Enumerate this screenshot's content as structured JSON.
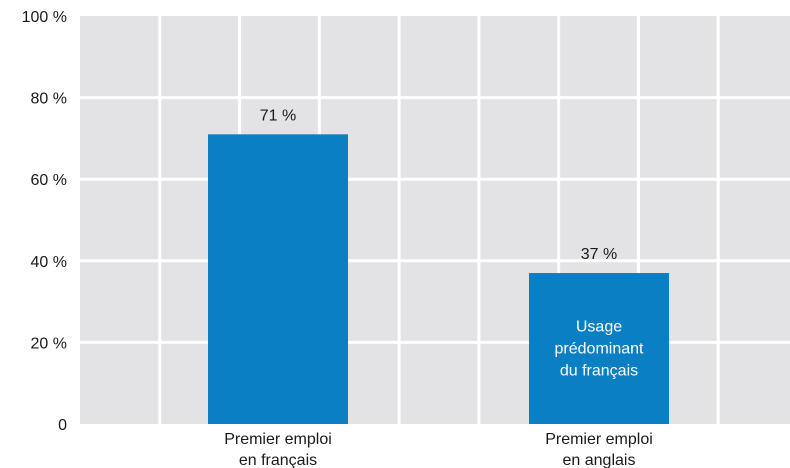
{
  "chart_data": {
    "type": "bar",
    "categories": [
      [
        "Premier emploi",
        "en français"
      ],
      [
        "Premier emploi",
        "en anglais"
      ]
    ],
    "values": [
      71,
      37
    ],
    "data_labels": [
      "71 %",
      "37 %"
    ],
    "bar_annotations": [
      [],
      [
        "Usage",
        "prédominant",
        "du français"
      ]
    ],
    "y_ticks": [
      {
        "value": 0,
        "label": "0"
      },
      {
        "value": 20,
        "label": "20 %"
      },
      {
        "value": 40,
        "label": "40 %"
      },
      {
        "value": 60,
        "label": "60 %"
      },
      {
        "value": 80,
        "label": "80 %"
      },
      {
        "value": 100,
        "label": "100 %"
      }
    ],
    "ylim": [
      0,
      100
    ],
    "grid": true,
    "colors": {
      "bar": "#0a7fc4",
      "plot_background": "#e3e3e5",
      "gridline": "#ffffff"
    }
  }
}
